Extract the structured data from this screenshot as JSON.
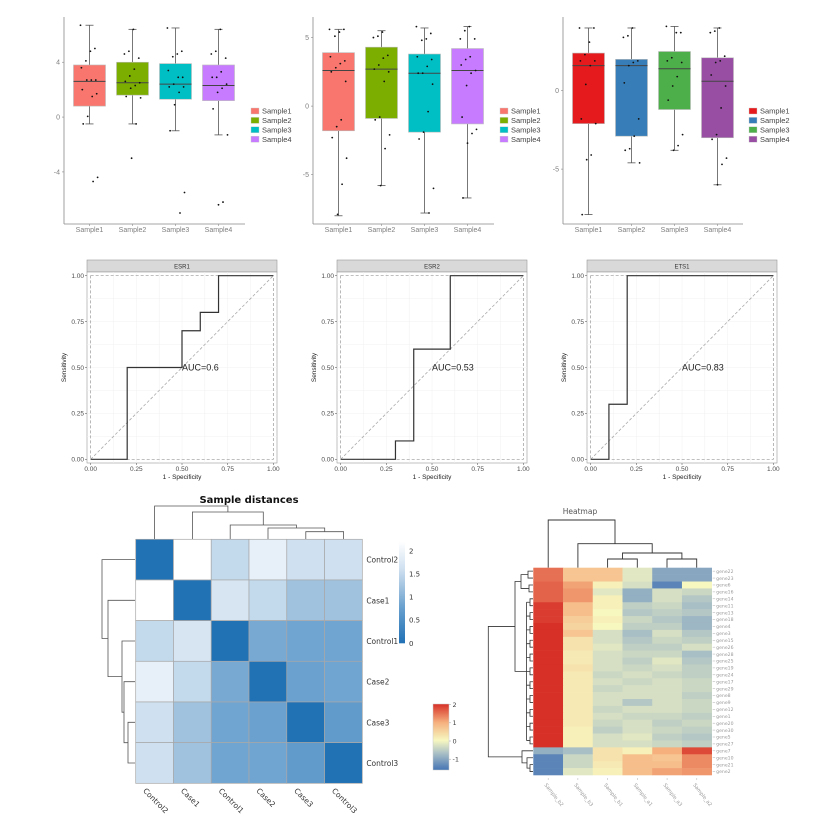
{
  "chart_data": [
    {
      "type": "box",
      "categories": [
        "Sample1",
        "Sample2",
        "Sample3",
        "Sample4"
      ],
      "ylim": [
        -7.8,
        7.3
      ],
      "yticks": [
        -4,
        0,
        4
      ],
      "legend": "right",
      "series": [
        {
          "name": "Sample1",
          "color": "#F8766D",
          "box": {
            "q1": 0.8,
            "median": 2.6,
            "q3": 3.8,
            "whisker_low": -0.5,
            "whisker_high": 6.7
          },
          "points": [
            6.7,
            5.0,
            4.8,
            4.1,
            3.6,
            2.7,
            2.7,
            2.7,
            2.0,
            1.7,
            1.5,
            0.05,
            -0.5,
            -4.4,
            -4.7
          ]
        },
        {
          "name": "Sample2",
          "color": "#7CAE00",
          "box": {
            "q1": 1.6,
            "median": 2.5,
            "q3": 4.0,
            "whisker_low": -0.5,
            "whisker_high": 6.4
          },
          "points": [
            6.4,
            4.8,
            4.6,
            4.3,
            3.5,
            3.0,
            2.6,
            2.5,
            2.3,
            2.1,
            1.5,
            1.4,
            -0.5,
            -3.0
          ]
        },
        {
          "name": "Sample3",
          "color": "#00BFC4",
          "box": {
            "q1": 1.3,
            "median": 2.4,
            "q3": 3.9,
            "whisker_low": -1.0,
            "whisker_high": 6.5
          },
          "points": [
            6.5,
            4.8,
            4.6,
            4.4,
            3.4,
            2.9,
            2.9,
            2.4,
            2.2,
            2.2,
            1.8,
            0.9,
            -1.0,
            -5.5,
            -7.0
          ]
        },
        {
          "name": "Sample4",
          "color": "#C77CFF",
          "box": {
            "q1": 1.2,
            "median": 2.3,
            "q3": 3.8,
            "whisker_low": -1.3,
            "whisker_high": 6.4
          },
          "points": [
            6.4,
            4.8,
            4.6,
            4.3,
            3.3,
            2.9,
            2.9,
            2.4,
            2.1,
            1.8,
            0.6,
            -1.3,
            -6.2,
            -6.4
          ]
        }
      ]
    },
    {
      "type": "box",
      "categories": [
        "Sample1",
        "Sample2",
        "Sample3",
        "Sample4"
      ],
      "ylim": [
        -8.6,
        6.5
      ],
      "yticks": [
        -5,
        0,
        5
      ],
      "legend": "right",
      "series": [
        {
          "name": "Sample1",
          "color": "#F8766D",
          "box": {
            "q1": -1.8,
            "median": 2.6,
            "q3": 3.9,
            "whisker_low": -8.0,
            "whisker_high": 5.6
          },
          "points": [
            5.6,
            5.6,
            5.4,
            5.1,
            3.6,
            3.3,
            3.1,
            2.8,
            2.5,
            1.8,
            -1.0,
            -1.5,
            -2.3,
            -3.8,
            -5.7,
            -7.9
          ]
        },
        {
          "name": "Sample2",
          "color": "#7CAE00",
          "box": {
            "q1": -0.9,
            "median": 2.7,
            "q3": 4.3,
            "whisker_low": -5.8,
            "whisker_high": 5.5
          },
          "points": [
            5.4,
            5.1,
            5.0,
            3.7,
            3.5,
            3.0,
            2.7,
            2.5,
            1.8,
            -0.8,
            -1.0,
            -2.1,
            -3.1,
            -5.8
          ]
        },
        {
          "name": "Sample3",
          "color": "#00BFC4",
          "box": {
            "q1": -1.9,
            "median": 2.4,
            "q3": 3.8,
            "whisker_low": -7.8,
            "whisker_high": 5.7
          },
          "points": [
            5.8,
            5.3,
            4.9,
            4.8,
            3.6,
            3.4,
            2.9,
            2.4,
            2.4,
            1.6,
            -0.4,
            -1.9,
            -2.4,
            -6.0,
            -7.8
          ]
        },
        {
          "name": "Sample4",
          "color": "#C77CFF",
          "box": {
            "q1": -1.3,
            "median": 2.6,
            "q3": 4.2,
            "whisker_low": -6.7,
            "whisker_high": 5.8
          },
          "points": [
            5.8,
            5.5,
            4.9,
            4.9,
            3.6,
            3.4,
            3.0,
            2.6,
            2.4,
            1.5,
            -0.8,
            -1.7,
            -2.0,
            -2.7,
            -6.7
          ]
        }
      ]
    },
    {
      "type": "box",
      "categories": [
        "Sample1",
        "Sample2",
        "Sample3",
        "Sample4"
      ],
      "ylim": [
        -8.5,
        4.7
      ],
      "yticks": [
        -5,
        0
      ],
      "legend": "right",
      "series": [
        {
          "name": "Sample1",
          "color": "#E41A1C",
          "box": {
            "q1": -2.1,
            "median": 1.6,
            "q3": 2.4,
            "whisker_low": -7.9,
            "whisker_high": 4.0
          },
          "points": [
            4.0,
            4.0,
            3.1,
            2.3,
            1.9,
            1.9,
            1.6,
            0.4,
            -1.8,
            -2.1,
            -4.1,
            -4.4,
            -7.9
          ]
        },
        {
          "name": "Sample2",
          "color": "#377EB8",
          "box": {
            "q1": -2.9,
            "median": 1.6,
            "q3": 2.0,
            "whisker_low": -4.6,
            "whisker_high": 4.0
          },
          "points": [
            4.0,
            3.5,
            3.4,
            1.9,
            1.8,
            1.6,
            0.5,
            -1.8,
            -2.9,
            -3.7,
            -3.8,
            -4.6
          ]
        },
        {
          "name": "Sample3",
          "color": "#4DAF4A",
          "box": {
            "q1": -1.2,
            "median": 1.4,
            "q3": 2.5,
            "whisker_low": -3.8,
            "whisker_high": 4.1
          },
          "points": [
            4.1,
            3.7,
            3.7,
            2.1,
            1.9,
            1.8,
            0.9,
            0.3,
            -0.6,
            -2.8,
            -3.5,
            -3.8
          ]
        },
        {
          "name": "Sample4",
          "color": "#984EA3",
          "box": {
            "q1": -3.0,
            "median": 0.6,
            "q3": 2.1,
            "whisker_low": -6.0,
            "whisker_high": 4.0
          },
          "points": [
            4.0,
            3.8,
            3.7,
            2.2,
            1.9,
            1.8,
            1.0,
            0.3,
            -1.1,
            -2.8,
            -3.1,
            -4.3,
            -4.7,
            -6.0
          ]
        }
      ]
    },
    {
      "type": "line",
      "title": "ESR1",
      "xlabel": "1 - Specificity",
      "ylabel": "Sensitivity",
      "xlim": [
        0,
        1
      ],
      "ylim": [
        0,
        1
      ],
      "xticks": [
        "0.00",
        "0.25",
        "0.50",
        "0.75",
        "1.00"
      ],
      "yticks": [
        "0.00",
        "0.25",
        "0.50",
        "0.75",
        "1.00"
      ],
      "points": [
        [
          0,
          0
        ],
        [
          0.2,
          0
        ],
        [
          0.2,
          0.5
        ],
        [
          0.5,
          0.5
        ],
        [
          0.5,
          0.7
        ],
        [
          0.6,
          0.7
        ],
        [
          0.6,
          0.8
        ],
        [
          0.7,
          0.8
        ],
        [
          0.7,
          1
        ],
        [
          1,
          1
        ]
      ],
      "annotation": "AUC=0.6"
    },
    {
      "type": "line",
      "title": "ESR2",
      "xlabel": "1 - Specificity",
      "ylabel": "Sensitivity",
      "xlim": [
        0,
        1
      ],
      "ylim": [
        0,
        1
      ],
      "xticks": [
        "0.00",
        "0.25",
        "0.50",
        "0.75",
        "1.00"
      ],
      "yticks": [
        "0.00",
        "0.25",
        "0.50",
        "0.75",
        "1.00"
      ],
      "points": [
        [
          0,
          0
        ],
        [
          0.3,
          0
        ],
        [
          0.3,
          0.1
        ],
        [
          0.4,
          0.1
        ],
        [
          0.4,
          0.6
        ],
        [
          0.6,
          0.6
        ],
        [
          0.6,
          1
        ],
        [
          1,
          1
        ]
      ],
      "annotation": "AUC=0.53"
    },
    {
      "type": "line",
      "title": "ETS1",
      "xlabel": "1 - Specificity",
      "ylabel": "Sensitivity",
      "xlim": [
        0,
        1
      ],
      "ylim": [
        0,
        1
      ],
      "xticks": [
        "0.00",
        "0.25",
        "0.50",
        "0.75",
        "1.00"
      ],
      "yticks": [
        "0.00",
        "0.25",
        "0.50",
        "0.75",
        "1.00"
      ],
      "points": [
        [
          0,
          0
        ],
        [
          0.1,
          0
        ],
        [
          0.1,
          0.3
        ],
        [
          0.2,
          0.3
        ],
        [
          0.2,
          1
        ],
        [
          1,
          1
        ]
      ],
      "annotation": "AUC=0.83"
    },
    {
      "type": "heatmap",
      "title": "Sample distances",
      "rows": [
        "Control2",
        "Case1",
        "Control1",
        "Case2",
        "Case3",
        "Control3"
      ],
      "cols": [
        "Control2",
        "Case1",
        "Control1",
        "Case2",
        "Case3",
        "Control3"
      ],
      "values": [
        [
          0,
          2.2,
          1.5,
          1.9,
          1.6,
          1.6
        ],
        [
          2.2,
          0,
          1.7,
          1.5,
          1.2,
          1.2
        ],
        [
          1.5,
          1.7,
          0,
          0.9,
          0.85,
          0.85
        ],
        [
          1.9,
          1.5,
          0.9,
          0,
          0.8,
          0.85
        ],
        [
          1.6,
          1.2,
          0.85,
          0.8,
          0,
          0.7
        ],
        [
          1.6,
          1.2,
          0.85,
          0.85,
          0.7,
          0
        ]
      ],
      "colorbar": {
        "ticks": [
          "0",
          "0.5",
          "1",
          "1.5",
          "2"
        ],
        "range": [
          0,
          2.2
        ],
        "low_color": "#2171b5",
        "high_color": "#ffffff"
      }
    },
    {
      "type": "heatmap",
      "title": "Heatmap",
      "rows": [
        "gene22",
        "gene23",
        "gene6",
        "gene16",
        "gene14",
        "gene11",
        "gene13",
        "gene18",
        "gene4",
        "gene3",
        "gene15",
        "gene26",
        "gene28",
        "gene25",
        "gene19",
        "gene24",
        "gene17",
        "gene29",
        "gene8",
        "gene9",
        "gene12",
        "gene1",
        "gene20",
        "gene30",
        "gene5",
        "gene27",
        "gene7",
        "gene10",
        "gene21",
        "gene2"
      ],
      "cols": [
        "Sample_b2",
        "Sample_b3",
        "Sample_b1",
        "Sample_a1",
        "Sample_a3",
        "Sample_a2"
      ],
      "values": [
        [
          1.5,
          0.7,
          0.7,
          -0.2,
          -1.0,
          -1.0
        ],
        [
          1.5,
          0.7,
          0.7,
          -0.2,
          -1.0,
          -1.0
        ],
        [
          1.6,
          1.1,
          0.1,
          -0.3,
          -1.4,
          0.0
        ],
        [
          1.6,
          1.2,
          -0.2,
          -0.9,
          -0.3,
          -0.4
        ],
        [
          1.6,
          1.2,
          0.1,
          -0.9,
          -0.3,
          -0.6
        ],
        [
          1.9,
          0.8,
          0.1,
          -0.5,
          -0.4,
          -0.7
        ],
        [
          1.9,
          0.8,
          0.0,
          -0.6,
          -0.5,
          -0.6
        ],
        [
          1.9,
          0.6,
          0.1,
          -0.4,
          -0.6,
          -0.8
        ],
        [
          2.0,
          0.5,
          0.0,
          -0.5,
          -0.5,
          -0.8
        ],
        [
          2.0,
          0.7,
          -0.3,
          -0.7,
          -0.3,
          -0.6
        ],
        [
          2.0,
          0.3,
          -0.3,
          -0.6,
          -0.4,
          -0.5
        ],
        [
          2.0,
          0.3,
          -0.2,
          -0.5,
          -0.5,
          -0.3
        ],
        [
          2.0,
          0.2,
          -0.3,
          -0.4,
          -0.4,
          -0.7
        ],
        [
          2.0,
          0.2,
          -0.3,
          -0.5,
          -0.2,
          -0.6
        ],
        [
          2.0,
          0.3,
          -0.3,
          -0.4,
          -0.3,
          -0.5
        ],
        [
          2.0,
          0.2,
          -0.4,
          -0.3,
          -0.4,
          -0.5
        ],
        [
          2.0,
          0.2,
          -0.3,
          -0.4,
          -0.3,
          -0.4
        ],
        [
          2.0,
          0.2,
          -0.4,
          -0.3,
          -0.3,
          -0.4
        ],
        [
          2.0,
          0.2,
          -0.3,
          -0.3,
          -0.3,
          -0.5
        ],
        [
          2.0,
          0.2,
          -0.3,
          -0.6,
          -0.3,
          -0.4
        ],
        [
          2.0,
          0.2,
          -0.4,
          -0.3,
          -0.3,
          -0.4
        ],
        [
          2.0,
          0.2,
          -0.3,
          -0.4,
          -0.4,
          -0.5
        ],
        [
          2.0,
          0.2,
          -0.4,
          -0.3,
          -0.5,
          -0.4
        ],
        [
          2.0,
          0.1,
          -0.5,
          -0.3,
          -0.4,
          -0.5
        ],
        [
          2.0,
          0.1,
          -0.3,
          -0.2,
          -0.5,
          -0.6
        ],
        [
          2.0,
          0.1,
          -0.3,
          -0.3,
          -0.4,
          -0.5
        ],
        [
          -0.9,
          -0.7,
          0.3,
          0.1,
          1.0,
          1.8
        ],
        [
          -1.4,
          -0.4,
          0.3,
          0.8,
          0.7,
          1.3
        ],
        [
          -1.4,
          -0.4,
          0.2,
          0.8,
          0.8,
          1.3
        ],
        [
          -1.4,
          -0.2,
          0.1,
          0.8,
          1.1,
          1.2
        ]
      ],
      "colorbar": {
        "ticks": [
          "-1",
          "0",
          "1",
          "2"
        ],
        "range": [
          -1.6,
          2
        ],
        "low_color": "#4575b4",
        "mid_color": "#f7f7c0",
        "high_color": "#d73027"
      }
    }
  ]
}
